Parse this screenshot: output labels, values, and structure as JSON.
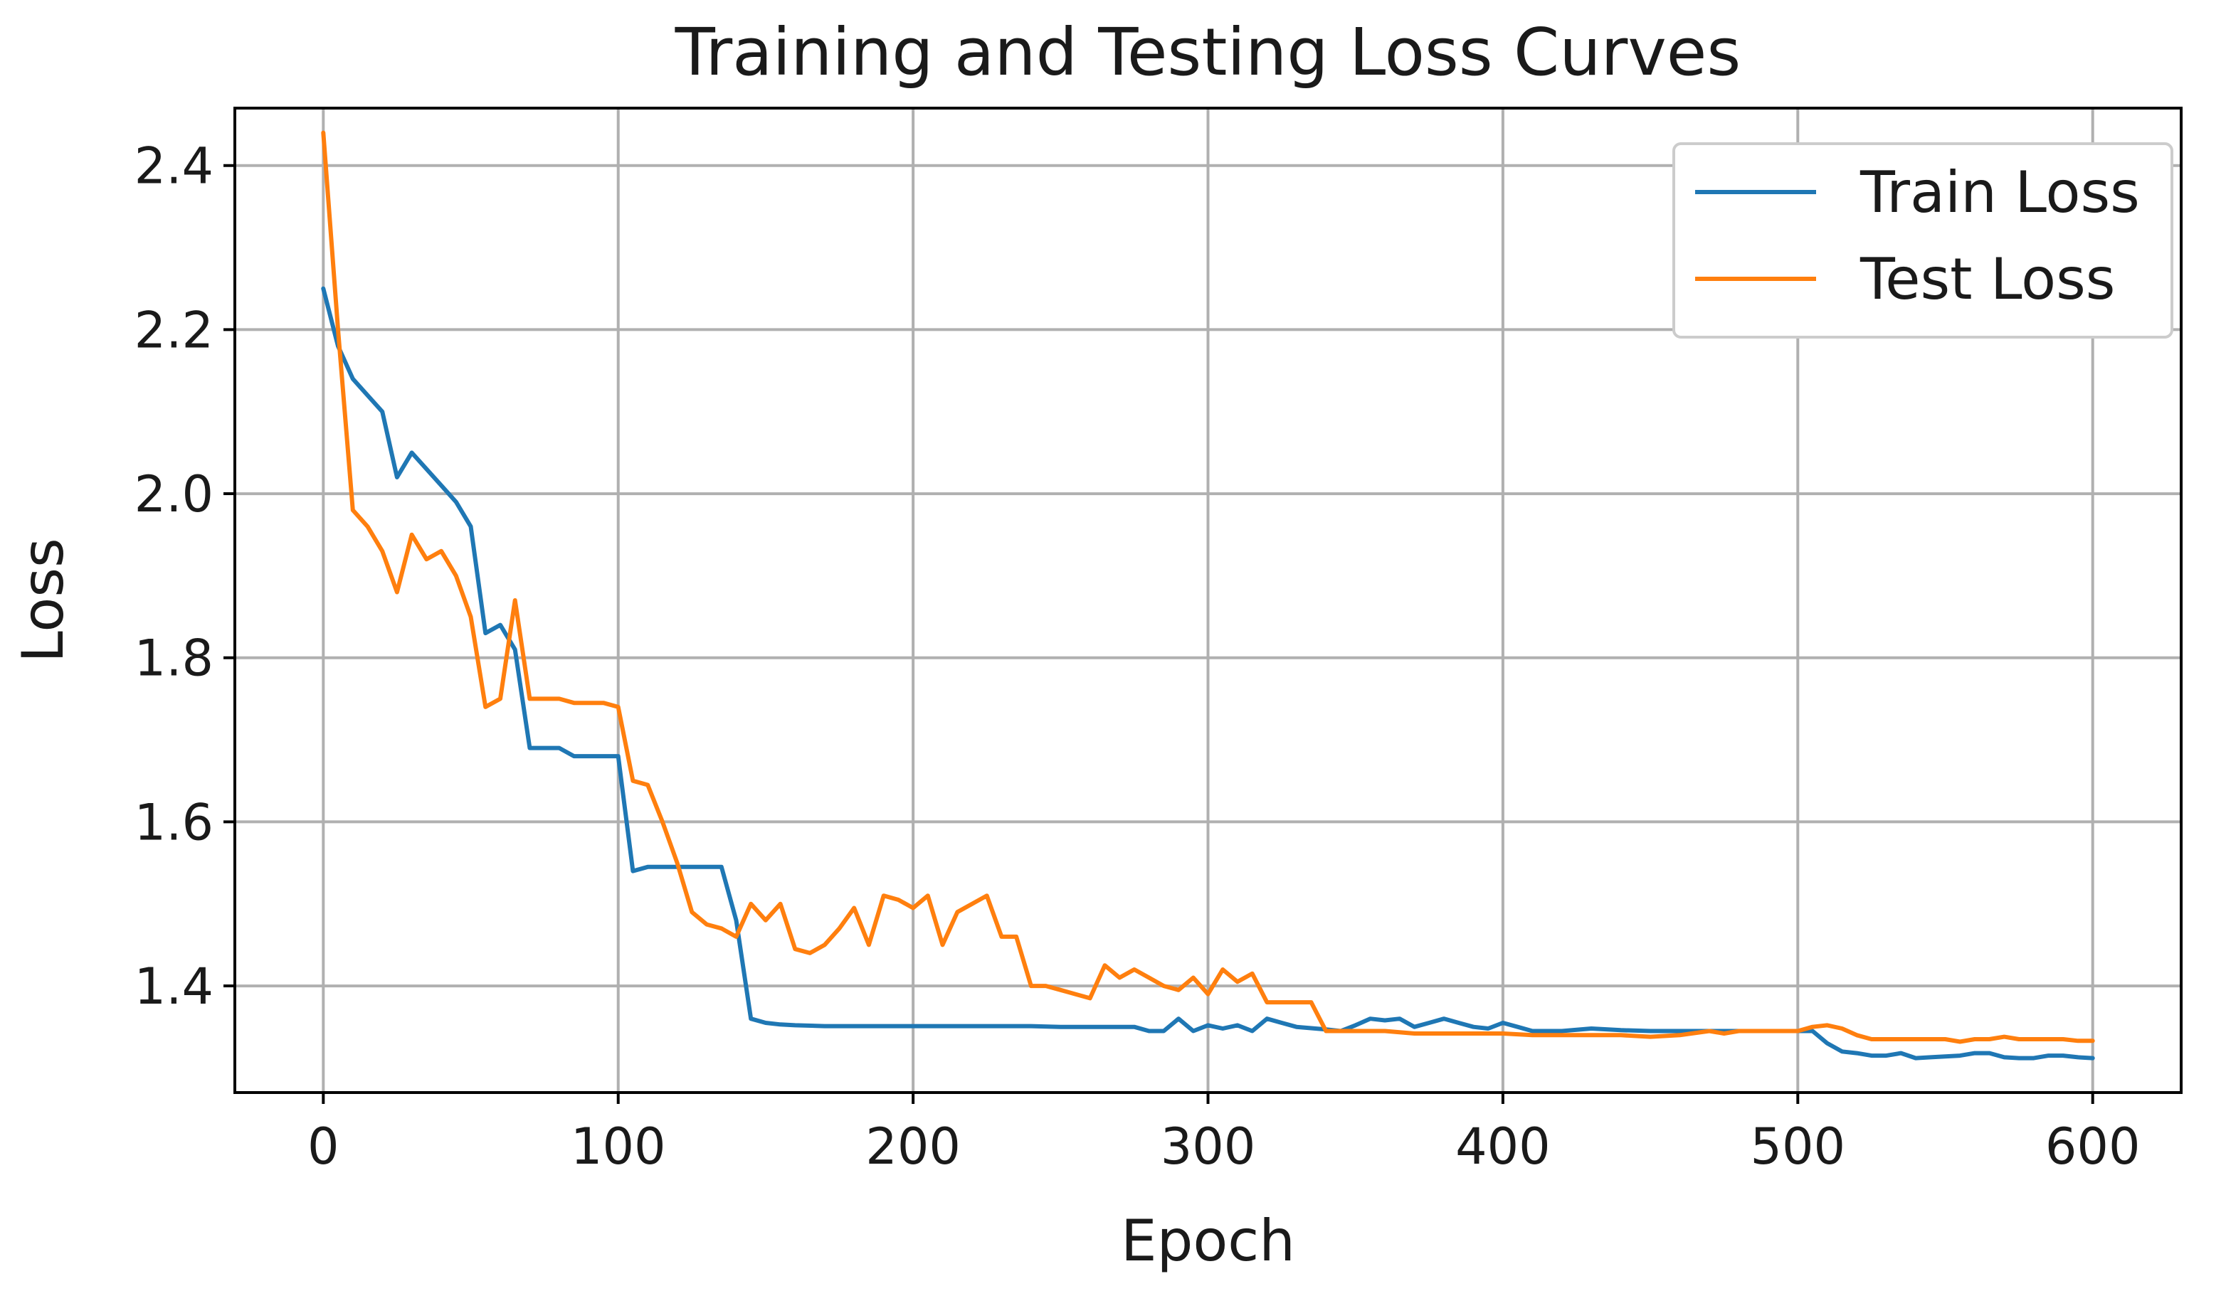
{
  "chart_data": {
    "type": "line",
    "title": "Training and Testing Loss Curves",
    "xlabel": "Epoch",
    "ylabel": "Loss",
    "xlim": [
      -30,
      630
    ],
    "ylim": [
      1.27,
      2.47
    ],
    "xticks": [
      0,
      100,
      200,
      300,
      400,
      500,
      600
    ],
    "yticks": [
      1.4,
      1.6,
      1.8,
      2.0,
      2.2,
      2.4
    ],
    "grid": true,
    "legend_position": "top-right",
    "series": [
      {
        "name": "Train Loss",
        "color": "#1f77b4",
        "x": [
          0,
          5,
          10,
          15,
          20,
          25,
          30,
          35,
          40,
          45,
          50,
          55,
          60,
          65,
          70,
          75,
          80,
          85,
          90,
          95,
          100,
          105,
          110,
          115,
          120,
          125,
          130,
          135,
          140,
          145,
          150,
          155,
          160,
          170,
          180,
          190,
          200,
          210,
          220,
          230,
          240,
          250,
          260,
          270,
          275,
          280,
          285,
          290,
          295,
          300,
          305,
          310,
          315,
          320,
          325,
          330,
          340,
          345,
          350,
          355,
          360,
          365,
          370,
          375,
          380,
          385,
          390,
          395,
          400,
          405,
          410,
          420,
          430,
          440,
          450,
          460,
          470,
          480,
          490,
          500,
          505,
          510,
          515,
          520,
          525,
          530,
          535,
          540,
          545,
          550,
          555,
          560,
          565,
          570,
          575,
          580,
          585,
          590,
          595,
          600
        ],
        "y": [
          2.25,
          2.18,
          2.14,
          2.12,
          2.1,
          2.02,
          2.05,
          2.03,
          2.01,
          1.99,
          1.96,
          1.83,
          1.84,
          1.81,
          1.69,
          1.69,
          1.69,
          1.68,
          1.68,
          1.68,
          1.68,
          1.54,
          1.545,
          1.545,
          1.545,
          1.545,
          1.545,
          1.545,
          1.48,
          1.36,
          1.355,
          1.353,
          1.352,
          1.351,
          1.351,
          1.351,
          1.351,
          1.351,
          1.351,
          1.351,
          1.351,
          1.35,
          1.35,
          1.35,
          1.35,
          1.345,
          1.345,
          1.36,
          1.345,
          1.352,
          1.348,
          1.352,
          1.345,
          1.36,
          1.355,
          1.35,
          1.347,
          1.345,
          1.352,
          1.36,
          1.358,
          1.36,
          1.35,
          1.355,
          1.36,
          1.355,
          1.35,
          1.348,
          1.355,
          1.35,
          1.345,
          1.345,
          1.348,
          1.346,
          1.345,
          1.345,
          1.345,
          1.345,
          1.345,
          1.345,
          1.345,
          1.33,
          1.32,
          1.318,
          1.315,
          1.315,
          1.318,
          1.312,
          1.313,
          1.314,
          1.315,
          1.318,
          1.318,
          1.313,
          1.312,
          1.312,
          1.315,
          1.315,
          1.313,
          1.312
        ]
      },
      {
        "name": "Test Loss",
        "color": "#ff7f0e",
        "x": [
          0,
          5,
          10,
          15,
          20,
          25,
          30,
          35,
          40,
          45,
          50,
          55,
          60,
          65,
          70,
          75,
          80,
          85,
          90,
          95,
          100,
          105,
          110,
          115,
          120,
          125,
          130,
          135,
          140,
          145,
          150,
          155,
          160,
          165,
          170,
          175,
          180,
          185,
          190,
          195,
          200,
          205,
          210,
          215,
          220,
          225,
          230,
          235,
          240,
          245,
          250,
          255,
          260,
          265,
          270,
          275,
          280,
          285,
          290,
          295,
          300,
          305,
          310,
          315,
          320,
          325,
          330,
          335,
          340,
          345,
          350,
          360,
          370,
          380,
          390,
          400,
          410,
          420,
          430,
          440,
          450,
          460,
          470,
          475,
          480,
          490,
          500,
          505,
          510,
          515,
          520,
          525,
          530,
          535,
          540,
          545,
          550,
          555,
          560,
          565,
          570,
          575,
          580,
          585,
          590,
          595,
          600
        ],
        "y": [
          2.44,
          2.2,
          1.98,
          1.96,
          1.93,
          1.88,
          1.95,
          1.92,
          1.93,
          1.9,
          1.85,
          1.74,
          1.75,
          1.87,
          1.75,
          1.75,
          1.75,
          1.745,
          1.745,
          1.745,
          1.74,
          1.65,
          1.645,
          1.6,
          1.55,
          1.49,
          1.475,
          1.47,
          1.46,
          1.5,
          1.48,
          1.5,
          1.445,
          1.44,
          1.45,
          1.47,
          1.495,
          1.45,
          1.51,
          1.505,
          1.495,
          1.51,
          1.45,
          1.49,
          1.5,
          1.51,
          1.46,
          1.46,
          1.4,
          1.4,
          1.395,
          1.39,
          1.385,
          1.425,
          1.41,
          1.42,
          1.41,
          1.4,
          1.395,
          1.41,
          1.39,
          1.42,
          1.405,
          1.415,
          1.38,
          1.38,
          1.38,
          1.38,
          1.345,
          1.345,
          1.345,
          1.345,
          1.342,
          1.342,
          1.342,
          1.342,
          1.34,
          1.34,
          1.34,
          1.34,
          1.338,
          1.34,
          1.345,
          1.342,
          1.345,
          1.345,
          1.345,
          1.35,
          1.352,
          1.348,
          1.34,
          1.335,
          1.335,
          1.335,
          1.335,
          1.335,
          1.335,
          1.332,
          1.335,
          1.335,
          1.338,
          1.335,
          1.335,
          1.335,
          1.335,
          1.333,
          1.333
        ]
      }
    ]
  }
}
